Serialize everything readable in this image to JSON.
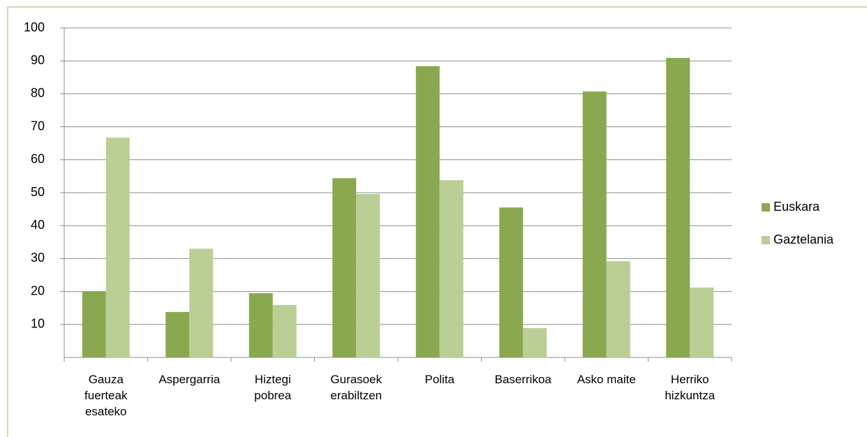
{
  "chart_data": {
    "type": "bar",
    "categories": [
      "Gauza\nfuerteak\nesateko",
      "Aspergarria",
      "Hiztegi\npobrea",
      "Gurasoek\nerabiltzen",
      "Polita",
      "Baserrikoa",
      "Asko maite",
      "Herriko\nhizkuntza"
    ],
    "series": [
      {
        "name": "Euskara",
        "color": "#8aa84f",
        "values": [
          20,
          13.8,
          19.5,
          54.4,
          88.4,
          45.5,
          80.7,
          90.9
        ]
      },
      {
        "name": "Gaztelania",
        "color": "#b9cf96",
        "values": [
          66.7,
          33,
          15.9,
          49.6,
          53.8,
          8.9,
          29.2,
          21.2
        ]
      }
    ],
    "ylim": [
      0,
      100
    ],
    "yticks": [
      10,
      20,
      30,
      40,
      50,
      60,
      70,
      80,
      90,
      100
    ],
    "grid": true,
    "legend": "right"
  }
}
